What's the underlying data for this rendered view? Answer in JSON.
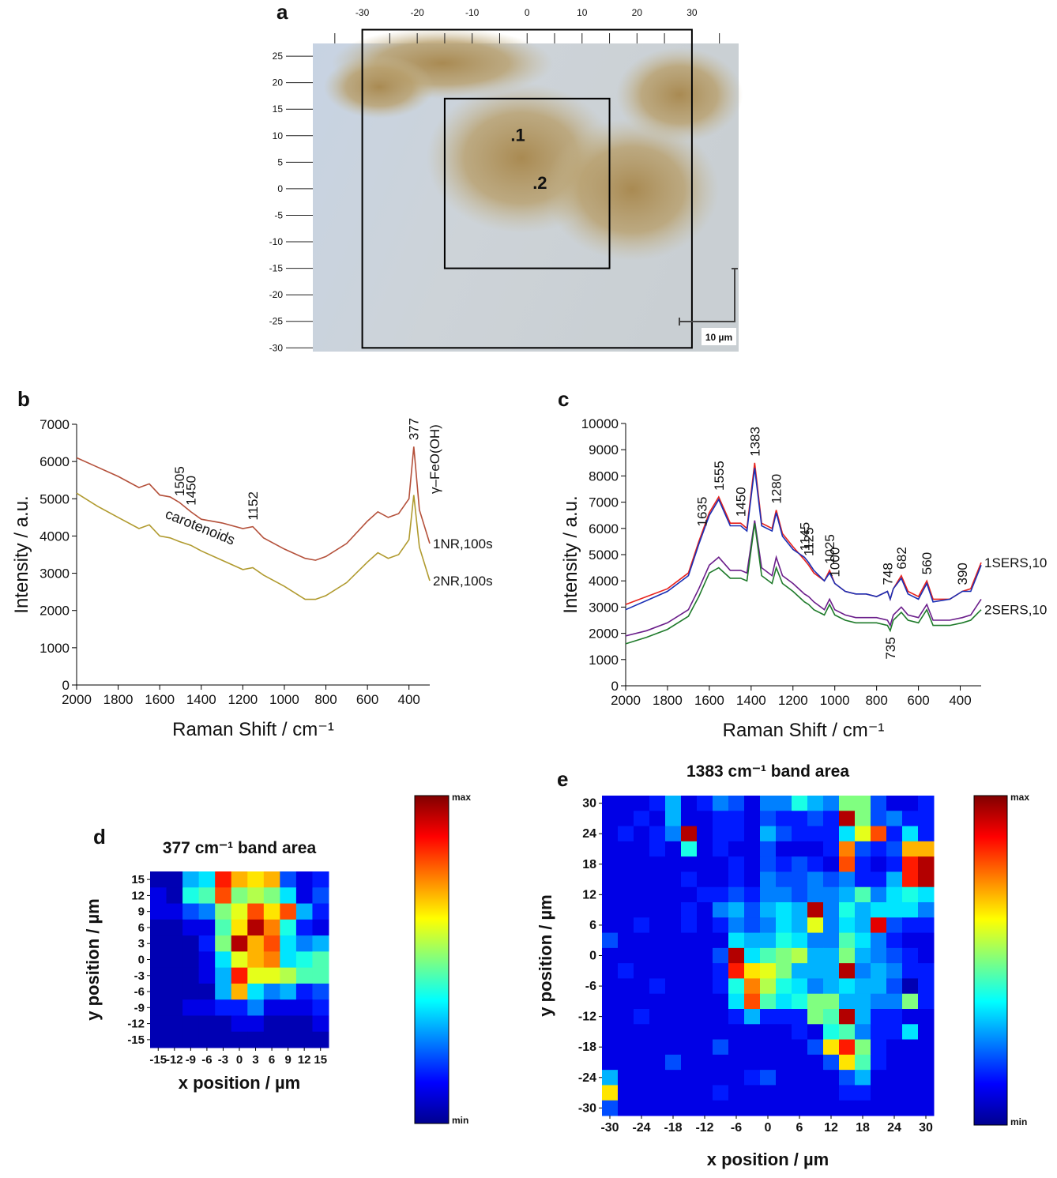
{
  "chart_data": [
    {
      "type": "image",
      "panel": "a",
      "xlim": [
        -39,
        38.5
      ],
      "ylim": [
        -30.7,
        27.4
      ],
      "xticks": [
        -30,
        -20,
        -10,
        0,
        10,
        20,
        30
      ],
      "xminor": [
        -35,
        -25,
        -15,
        -5,
        5,
        15,
        25,
        35
      ],
      "yticks": [
        25,
        20,
        15,
        10,
        5,
        0,
        -5,
        -10,
        -15,
        -20,
        -25,
        -30
      ],
      "boxes": [
        {
          "x": [
            -30,
            30
          ],
          "y": [
            -30,
            30
          ]
        },
        {
          "x": [
            -15,
            15
          ],
          "y": [
            -15,
            17
          ]
        }
      ],
      "points": [
        {
          "label": ".1",
          "x": -3,
          "y": 9
        },
        {
          "label": ".2",
          "x": 1,
          "y": 0
        }
      ],
      "scale_bar": "10 µm"
    },
    {
      "type": "line",
      "panel": "b",
      "xlabel": "Raman Shift / cm⁻¹",
      "ylabel": "Intensity / a.u.",
      "xlim": [
        2000,
        300
      ],
      "ylim": [
        0,
        7000
      ],
      "xticks": [
        2000,
        1800,
        1600,
        1400,
        1200,
        1000,
        800,
        600,
        400
      ],
      "yticks": [
        0,
        1000,
        2000,
        3000,
        4000,
        5000,
        6000,
        7000
      ],
      "x": [
        2000,
        1900,
        1800,
        1700,
        1650,
        1600,
        1550,
        1505,
        1450,
        1400,
        1300,
        1200,
        1152,
        1100,
        1000,
        900,
        850,
        800,
        700,
        600,
        550,
        500,
        450,
        400,
        377,
        350,
        300
      ],
      "series": [
        {
          "name": "1NR,100s",
          "color": "#b4503a",
          "values": [
            6100,
            5850,
            5600,
            5300,
            5400,
            5100,
            5050,
            4900,
            4650,
            4450,
            4350,
            4200,
            4250,
            3950,
            3650,
            3400,
            3350,
            3450,
            3800,
            4400,
            4650,
            4500,
            4600,
            5000,
            6400,
            4700,
            3800
          ]
        },
        {
          "name": "2NR,100s",
          "color": "#b09a2e",
          "values": [
            5150,
            4800,
            4500,
            4200,
            4300,
            4000,
            3950,
            3850,
            3750,
            3600,
            3350,
            3100,
            3150,
            2950,
            2650,
            2300,
            2300,
            2400,
            2750,
            3300,
            3550,
            3400,
            3500,
            3900,
            5100,
            3700,
            2800
          ]
        }
      ],
      "peak_labels": [
        1505,
        1450,
        1152,
        377
      ],
      "annotations": [
        "carotenoids",
        "γ–FeO(OH)"
      ]
    },
    {
      "type": "line",
      "panel": "c",
      "xlabel": "Raman Shift / cm⁻¹",
      "ylabel": "Intensity / a.u.",
      "xlim": [
        2000,
        300
      ],
      "ylim": [
        0,
        10000
      ],
      "xticks": [
        2000,
        1800,
        1600,
        1400,
        1200,
        1000,
        800,
        600,
        400
      ],
      "yticks": [
        0,
        1000,
        2000,
        3000,
        4000,
        5000,
        6000,
        7000,
        8000,
        9000,
        10000
      ],
      "x": [
        2000,
        1900,
        1800,
        1700,
        1650,
        1600,
        1555,
        1500,
        1450,
        1420,
        1383,
        1350,
        1300,
        1280,
        1250,
        1200,
        1145,
        1125,
        1100,
        1050,
        1025,
        1000,
        950,
        900,
        850,
        800,
        748,
        735,
        720,
        682,
        650,
        600,
        560,
        530,
        450,
        390,
        350,
        300
      ],
      "series": [
        {
          "name": "1SERS,10",
          "color": "#e8221c",
          "values": [
            3100,
            3400,
            3700,
            4300,
            5500,
            6600,
            7200,
            6200,
            6200,
            6000,
            8500,
            6200,
            6000,
            6700,
            5800,
            5300,
            4800,
            4600,
            4300,
            4000,
            4400,
            3900,
            3600,
            3500,
            3500,
            3400,
            3600,
            3300,
            3700,
            4200,
            3600,
            3400,
            4000,
            3300,
            3300,
            3600,
            3700,
            4700
          ]
        },
        {
          "color": "#1a2fb5",
          "values": [
            2900,
            3250,
            3600,
            4200,
            5400,
            6500,
            7100,
            6100,
            6100,
            5900,
            8300,
            6100,
            5900,
            6600,
            5700,
            5200,
            4900,
            4700,
            4400,
            4000,
            4300,
            3900,
            3600,
            3500,
            3500,
            3400,
            3600,
            3300,
            3700,
            4100,
            3500,
            3300,
            3900,
            3200,
            3300,
            3600,
            3600,
            4600
          ]
        },
        {
          "color": "#6a1d8a",
          "values": [
            1900,
            2100,
            2400,
            2900,
            3700,
            4600,
            4900,
            4400,
            4400,
            4300,
            6300,
            4500,
            4200,
            4900,
            4200,
            3900,
            3500,
            3400,
            3200,
            2900,
            3300,
            2900,
            2700,
            2600,
            2600,
            2600,
            2500,
            2300,
            2700,
            3000,
            2700,
            2600,
            3100,
            2500,
            2500,
            2600,
            2700,
            3300
          ]
        },
        {
          "name": "2SERS,10",
          "color": "#1e7a2a",
          "values": [
            1600,
            1850,
            2150,
            2650,
            3400,
            4300,
            4500,
            4100,
            4100,
            4000,
            6200,
            4200,
            3900,
            4500,
            3900,
            3600,
            3200,
            3100,
            2900,
            2700,
            3100,
            2700,
            2500,
            2400,
            2400,
            2400,
            2300,
            2100,
            2500,
            2800,
            2500,
            2400,
            2900,
            2300,
            2300,
            2400,
            2500,
            2900
          ]
        }
      ],
      "peak_labels": [
        1635,
        1555,
        1450,
        1383,
        1280,
        1145,
        1125,
        1025,
        1000,
        748,
        682,
        560,
        390
      ],
      "peak_labels_below": [
        735
      ]
    },
    {
      "type": "heatmap",
      "panel": "d",
      "title": "377 cm⁻¹ band area",
      "xlabel": "x position / µm",
      "ylabel": "y position / µm",
      "xlim": [
        -16.5,
        16.5
      ],
      "ylim": [
        -16.5,
        16.5
      ],
      "zlim": [
        0,
        1
      ],
      "colorbar_labels": [
        "max",
        "min"
      ],
      "xticks": [
        -15,
        -12,
        -9,
        -6,
        -3,
        0,
        3,
        6,
        9,
        12,
        15
      ],
      "yticks": [
        15,
        12,
        9,
        6,
        3,
        0,
        -3,
        -6,
        -9,
        -12,
        -15
      ],
      "x": [
        -15,
        -12,
        -9,
        -6,
        -3,
        0,
        3,
        6,
        9,
        12,
        15
      ],
      "y": [
        15,
        12,
        9,
        6,
        3,
        0,
        -3,
        -6,
        -9,
        -12,
        -15
      ],
      "z": [
        [
          0.05,
          0.05,
          0.3,
          0.35,
          0.85,
          0.7,
          0.65,
          0.7,
          0.2,
          0.1,
          0.15
        ],
        [
          0.1,
          0.05,
          0.4,
          0.45,
          0.8,
          0.5,
          0.55,
          0.5,
          0.35,
          0.1,
          0.2
        ],
        [
          0.1,
          0.1,
          0.2,
          0.25,
          0.5,
          0.6,
          0.8,
          0.65,
          0.8,
          0.3,
          0.15
        ],
        [
          0.05,
          0.05,
          0.1,
          0.1,
          0.45,
          0.65,
          0.95,
          0.75,
          0.4,
          0.15,
          0.1
        ],
        [
          0.05,
          0.05,
          0.05,
          0.15,
          0.5,
          0.95,
          0.7,
          0.8,
          0.35,
          0.25,
          0.3
        ],
        [
          0.05,
          0.05,
          0.05,
          0.1,
          0.35,
          0.6,
          0.7,
          0.75,
          0.35,
          0.4,
          0.45
        ],
        [
          0.05,
          0.05,
          0.05,
          0.1,
          0.3,
          0.85,
          0.6,
          0.6,
          0.55,
          0.45,
          0.45
        ],
        [
          0.05,
          0.05,
          0.05,
          0.05,
          0.3,
          0.7,
          0.35,
          0.25,
          0.3,
          0.15,
          0.2
        ],
        [
          0.05,
          0.05,
          0.1,
          0.1,
          0.15,
          0.15,
          0.25,
          0.1,
          0.1,
          0.1,
          0.15
        ],
        [
          0.05,
          0.05,
          0.05,
          0.05,
          0.05,
          0.1,
          0.1,
          0.05,
          0.05,
          0.05,
          0.1
        ],
        [
          0.05,
          0.05,
          0.05,
          0.05,
          0.05,
          0.05,
          0.05,
          0.05,
          0.05,
          0.05,
          0.05
        ]
      ]
    },
    {
      "type": "heatmap",
      "panel": "e",
      "title": "1383 cm⁻¹ band area",
      "xlabel": "x position / µm",
      "ylabel": "y position / µm",
      "xlim": [
        -31.5,
        31.5
      ],
      "ylim": [
        -31.5,
        31.5
      ],
      "zlim": [
        0,
        1
      ],
      "colorbar_labels": [
        "max",
        "min"
      ],
      "xticks": [
        -30,
        -24,
        -18,
        -12,
        -6,
        0,
        6,
        12,
        18,
        24,
        30
      ],
      "yticks": [
        30,
        24,
        18,
        12,
        6,
        0,
        -6,
        -12,
        -18,
        -24,
        -30
      ],
      "x": [
        -30,
        -27,
        -24,
        -21,
        -18,
        -15,
        -12,
        -9,
        -6,
        -3,
        0,
        3,
        6,
        9,
        12,
        15,
        18,
        21,
        24,
        27,
        30
      ],
      "y": [
        30,
        27,
        24,
        21,
        18,
        15,
        12,
        9,
        6,
        3,
        0,
        -3,
        -6,
        -9,
        -12,
        -15,
        -18,
        -21,
        -24,
        -27,
        -30
      ],
      "z": [
        [
          0.1,
          0.1,
          0.1,
          0.15,
          0.3,
          0.1,
          0.15,
          0.25,
          0.2,
          0.1,
          0.25,
          0.25,
          0.4,
          0.3,
          0.25,
          0.5,
          0.5,
          0.2,
          0.1,
          0.1,
          0.15
        ],
        [
          0.1,
          0.1,
          0.15,
          0.1,
          0.3,
          0.1,
          0.1,
          0.15,
          0.15,
          0.1,
          0.2,
          0.15,
          0.15,
          0.2,
          0.15,
          0.95,
          0.5,
          0.2,
          0.25,
          0.15,
          0.15
        ],
        [
          0.1,
          0.15,
          0.1,
          0.15,
          0.25,
          0.95,
          0.1,
          0.15,
          0.15,
          0.1,
          0.3,
          0.2,
          0.15,
          0.15,
          0.15,
          0.35,
          0.6,
          0.8,
          0.15,
          0.35,
          0.15
        ],
        [
          0.1,
          0.1,
          0.1,
          0.15,
          0.1,
          0.4,
          0.1,
          0.15,
          0.1,
          0.1,
          0.2,
          0.1,
          0.1,
          0.1,
          0.15,
          0.75,
          0.2,
          0.15,
          0.2,
          0.7,
          0.7
        ],
        [
          0.1,
          0.1,
          0.1,
          0.1,
          0.1,
          0.1,
          0.1,
          0.1,
          0.15,
          0.1,
          0.2,
          0.15,
          0.2,
          0.15,
          0.1,
          0.8,
          0.15,
          0.1,
          0.15,
          0.85,
          0.95
        ],
        [
          0.1,
          0.1,
          0.1,
          0.1,
          0.1,
          0.15,
          0.1,
          0.1,
          0.15,
          0.1,
          0.25,
          0.2,
          0.2,
          0.25,
          0.2,
          0.25,
          0.15,
          0.15,
          0.3,
          0.85,
          0.95
        ],
        [
          0.1,
          0.1,
          0.1,
          0.1,
          0.1,
          0.1,
          0.15,
          0.15,
          0.2,
          0.15,
          0.25,
          0.25,
          0.2,
          0.25,
          0.25,
          0.3,
          0.45,
          0.25,
          0.35,
          0.4,
          0.35
        ],
        [
          0.1,
          0.1,
          0.1,
          0.1,
          0.1,
          0.15,
          0.1,
          0.25,
          0.3,
          0.2,
          0.3,
          0.35,
          0.3,
          0.95,
          0.25,
          0.4,
          0.3,
          0.35,
          0.35,
          0.35,
          0.25
        ],
        [
          0.1,
          0.1,
          0.15,
          0.1,
          0.1,
          0.15,
          0.1,
          0.15,
          0.25,
          0.2,
          0.25,
          0.35,
          0.3,
          0.6,
          0.25,
          0.35,
          0.3,
          0.9,
          0.2,
          0.15,
          0.15
        ],
        [
          0.2,
          0.1,
          0.1,
          0.1,
          0.1,
          0.1,
          0.1,
          0.1,
          0.35,
          0.3,
          0.3,
          0.4,
          0.35,
          0.25,
          0.25,
          0.45,
          0.35,
          0.25,
          0.15,
          0.1,
          0.1
        ],
        [
          0.1,
          0.1,
          0.1,
          0.1,
          0.1,
          0.1,
          0.1,
          0.2,
          0.95,
          0.35,
          0.45,
          0.5,
          0.55,
          0.3,
          0.3,
          0.5,
          0.3,
          0.25,
          0.2,
          0.15,
          0.1
        ],
        [
          0.1,
          0.15,
          0.1,
          0.1,
          0.1,
          0.1,
          0.1,
          0.15,
          0.85,
          0.65,
          0.6,
          0.5,
          0.3,
          0.3,
          0.3,
          0.95,
          0.25,
          0.3,
          0.25,
          0.15,
          0.15
        ],
        [
          0.1,
          0.1,
          0.1,
          0.15,
          0.1,
          0.1,
          0.1,
          0.15,
          0.4,
          0.75,
          0.55,
          0.4,
          0.35,
          0.25,
          0.3,
          0.35,
          0.3,
          0.3,
          0.2,
          0.05,
          0.15
        ],
        [
          0.1,
          0.1,
          0.1,
          0.1,
          0.1,
          0.1,
          0.1,
          0.1,
          0.35,
          0.8,
          0.45,
          0.35,
          0.4,
          0.5,
          0.5,
          0.3,
          0.3,
          0.25,
          0.25,
          0.5,
          0.15
        ],
        [
          0.1,
          0.1,
          0.15,
          0.1,
          0.1,
          0.1,
          0.1,
          0.1,
          0.15,
          0.3,
          0.15,
          0.15,
          0.15,
          0.5,
          0.45,
          0.95,
          0.3,
          0.15,
          0.15,
          0.1,
          0.1
        ],
        [
          0.1,
          0.1,
          0.1,
          0.1,
          0.1,
          0.1,
          0.1,
          0.1,
          0.1,
          0.1,
          0.1,
          0.1,
          0.15,
          0.1,
          0.4,
          0.45,
          0.25,
          0.15,
          0.15,
          0.35,
          0.1
        ],
        [
          0.1,
          0.1,
          0.1,
          0.1,
          0.1,
          0.1,
          0.1,
          0.2,
          0.1,
          0.1,
          0.1,
          0.1,
          0.1,
          0.2,
          0.65,
          0.85,
          0.5,
          0.15,
          0.1,
          0.1,
          0.1
        ],
        [
          0.1,
          0.1,
          0.1,
          0.1,
          0.2,
          0.1,
          0.1,
          0.1,
          0.1,
          0.1,
          0.1,
          0.1,
          0.1,
          0.1,
          0.2,
          0.65,
          0.45,
          0.15,
          0.1,
          0.1,
          0.1
        ],
        [
          0.3,
          0.1,
          0.1,
          0.1,
          0.1,
          0.1,
          0.1,
          0.1,
          0.1,
          0.15,
          0.2,
          0.1,
          0.1,
          0.1,
          0.1,
          0.2,
          0.3,
          0.1,
          0.1,
          0.1,
          0.1
        ],
        [
          0.65,
          0.1,
          0.1,
          0.1,
          0.1,
          0.1,
          0.1,
          0.15,
          0.1,
          0.1,
          0.1,
          0.1,
          0.1,
          0.1,
          0.1,
          0.15,
          0.15,
          0.1,
          0.1,
          0.1,
          0.1
        ],
        [
          0.2,
          0.1,
          0.1,
          0.1,
          0.1,
          0.1,
          0.1,
          0.1,
          0.1,
          0.1,
          0.1,
          0.1,
          0.1,
          0.1,
          0.1,
          0.1,
          0.1,
          0.1,
          0.1,
          0.1,
          0.1
        ]
      ]
    }
  ]
}
